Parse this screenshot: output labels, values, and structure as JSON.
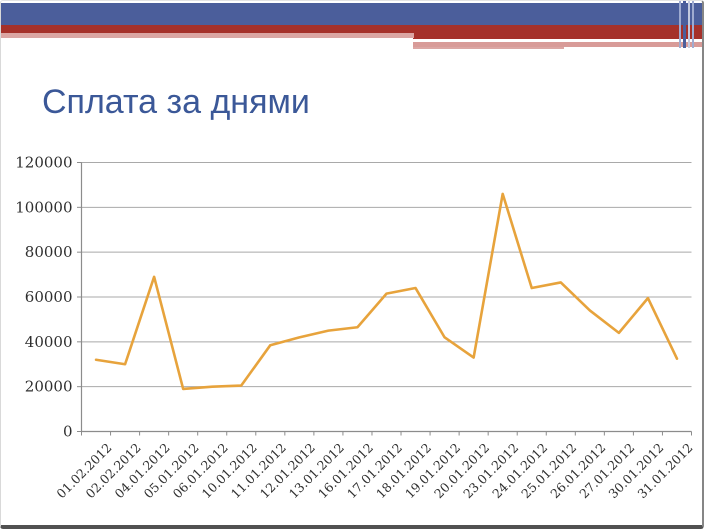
{
  "slide": {
    "title": "Сплата за днями"
  },
  "colors": {
    "header_blue": "#4b5e9b",
    "header_red": "#a5312a",
    "header_pink": "#dba6a3",
    "header_pink_soft": "#d89b98",
    "stripe_light_blue": "#9fabd0",
    "stripe_pale_blue": "#c3cade",
    "title_text": "#3b5898",
    "line": "#e7a33c",
    "grid": "#a9a9a9",
    "axis": "#8c8c8c",
    "tick_label": "#2f2f2f"
  },
  "chart_data": {
    "type": "line",
    "title": "Сплата за днями",
    "xlabel": "",
    "ylabel": "",
    "categories": [
      "01.02.2012",
      "02.02.2012",
      "04.01.2012",
      "05.01.2012",
      "06.01.2012",
      "10.01.2012",
      "11.01.2012",
      "12.01.2012",
      "13.01.2012",
      "16.01.2012",
      "17.01.2012",
      "18.01.2012",
      "19.01.2012",
      "20.01.2012",
      "23.01.2012",
      "24.01.2012",
      "25.01.2012",
      "26.01.2012",
      "27.01.2012",
      "30.01.2012",
      "31.01.2012"
    ],
    "values": [
      32000,
      30000,
      69000,
      19000,
      20000,
      20500,
      38500,
      42000,
      45000,
      46500,
      61500,
      64000,
      42000,
      33000,
      106000,
      64000,
      66500,
      54000,
      44000,
      59500,
      32500
    ],
    "ylim": [
      0,
      120000
    ],
    "yticks": [
      0,
      20000,
      40000,
      60000,
      80000,
      100000,
      120000
    ],
    "grid": true,
    "legend": false
  }
}
